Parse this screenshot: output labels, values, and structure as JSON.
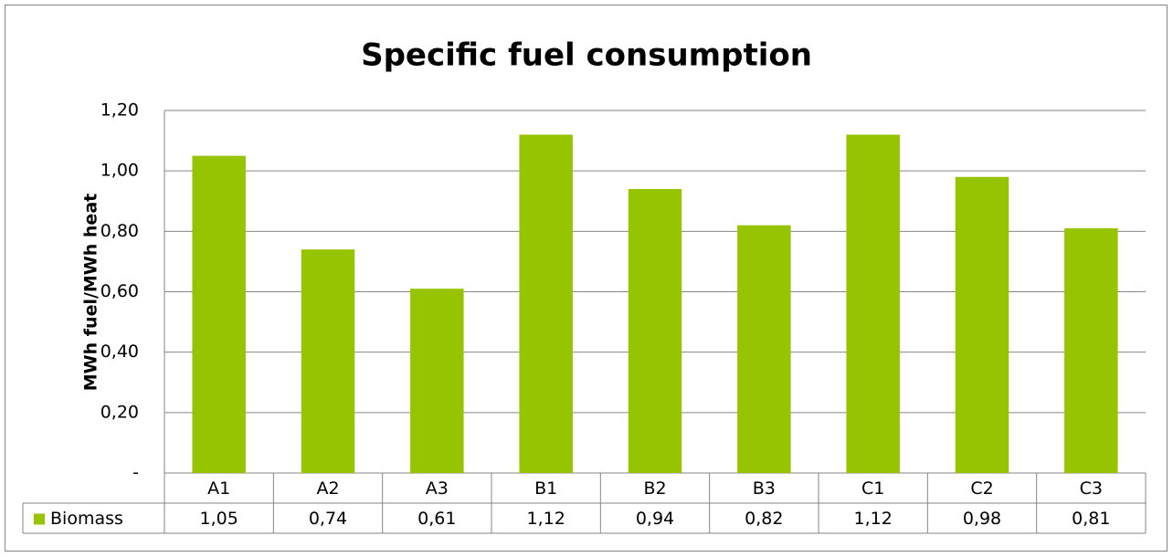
{
  "chart_data": {
    "type": "bar",
    "title": "Specific fuel consumption",
    "y_label": "MWh fuel/MWh heat",
    "categories": [
      "A1",
      "A2",
      "A3",
      "B1",
      "B2",
      "B3",
      "C1",
      "C2",
      "C3"
    ],
    "series": [
      {
        "name": "Biomass",
        "color": "#96c400",
        "values": [
          1.05,
          0.74,
          0.61,
          1.12,
          0.94,
          0.82,
          1.12,
          0.98,
          0.81
        ],
        "value_labels": [
          "1,05",
          "0,74",
          "0,61",
          "1,12",
          "0,94",
          "0,82",
          "1,12",
          "0,98",
          "0,81"
        ]
      }
    ],
    "ylim": [
      0,
      1.2
    ],
    "yticks": [
      {
        "value": 0,
        "label": "-"
      },
      {
        "value": 0.2,
        "label": "0,20"
      },
      {
        "value": 0.4,
        "label": "0,40"
      },
      {
        "value": 0.6,
        "label": "0,60"
      },
      {
        "value": 0.8,
        "label": "0,80"
      },
      {
        "value": 1.0,
        "label": "1,00"
      },
      {
        "value": 1.2,
        "label": "1,20"
      }
    ],
    "grid": true
  }
}
